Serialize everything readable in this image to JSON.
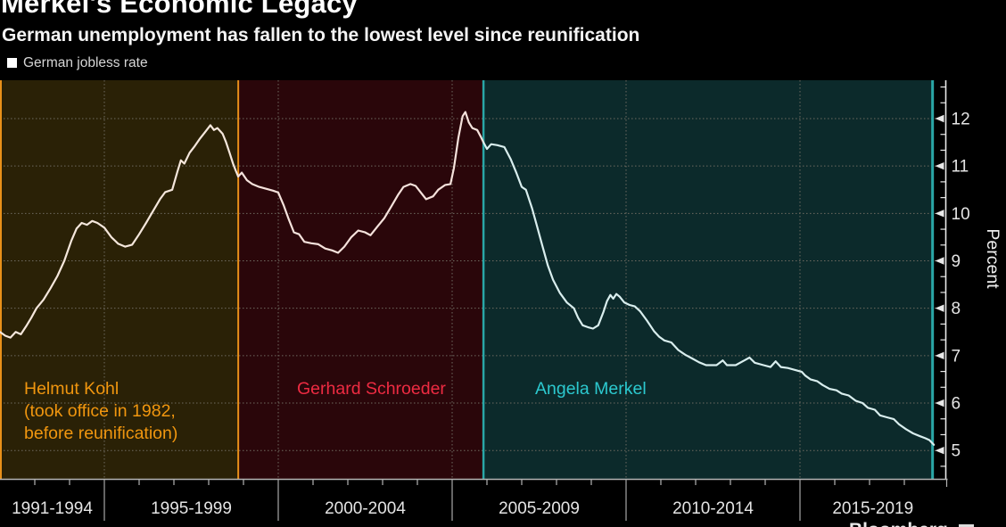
{
  "title": "Merkel's Economic Legacy",
  "subtitle": "German unemployment has fallen to the lowest level since reunification",
  "legend": {
    "label": "German jobless rate",
    "marker_color": "#ffffff"
  },
  "source": "Bloomberg",
  "colors": {
    "background": "#000000",
    "grid": "#6e6a60",
    "axis": "#e8e8e8",
    "bottom_axis": "#b4b4b4",
    "tick_label": "#e4e4e4",
    "separator": "#a8a8a8"
  },
  "chart_data": {
    "type": "line",
    "title": "Merkel's Economic Legacy",
    "subtitle": "German unemployment has fallen to the lowest level since reunification",
    "ylabel": "Percent",
    "yticks": [
      5,
      6,
      7,
      8,
      9,
      10,
      11,
      12
    ],
    "ylim": [
      4.4,
      12.8
    ],
    "grid": true,
    "legend_position": "top-left",
    "x_axis_labels": [
      "1991-1994",
      "1995-1999",
      "2000-2004",
      "2005-2009",
      "2010-2014",
      "2015-2019"
    ],
    "x_separator_years": [
      1995,
      2000,
      2005,
      2010,
      2015
    ],
    "x_start_year": 1992,
    "x_end_year": 2018.85,
    "regions": [
      {
        "label": "Helmut Kohl",
        "note_line1": "(took office in 1982,",
        "note_line2": "before reunification)",
        "start": 1992,
        "end": 1998.85,
        "fill": "#2a2106",
        "border_color": "#e8901a",
        "label_color": "#f0960f",
        "line_color": "#f5e7dc"
      },
      {
        "label": "Gerhard Schroeder",
        "note_line1": "",
        "note_line2": "",
        "start": 1998.85,
        "end": 2005.9,
        "fill": "#2a060a",
        "border_color": "",
        "label_color": "#ee2b42",
        "line_color": "#f5e2dc"
      },
      {
        "label": "Angela Merkel",
        "note_line1": "",
        "note_line2": "",
        "start": 2005.9,
        "end": 2018.85,
        "fill": "#0c2a2b",
        "border_color": "#2aa6a6",
        "label_color": "#2cc9cf",
        "line_color": "#d9eeee"
      }
    ],
    "series": [
      {
        "name": "German jobless rate",
        "points": [
          [
            1992.0,
            7.5
          ],
          [
            1992.15,
            7.42
          ],
          [
            1992.3,
            7.38
          ],
          [
            1992.45,
            7.5
          ],
          [
            1992.6,
            7.45
          ],
          [
            1992.75,
            7.62
          ],
          [
            1992.9,
            7.8
          ],
          [
            1993.05,
            8.0
          ],
          [
            1993.25,
            8.18
          ],
          [
            1993.45,
            8.42
          ],
          [
            1993.65,
            8.68
          ],
          [
            1993.85,
            9.0
          ],
          [
            1994.05,
            9.42
          ],
          [
            1994.2,
            9.68
          ],
          [
            1994.35,
            9.8
          ],
          [
            1994.5,
            9.76
          ],
          [
            1994.65,
            9.84
          ],
          [
            1994.8,
            9.8
          ],
          [
            1995.0,
            9.7
          ],
          [
            1995.2,
            9.5
          ],
          [
            1995.4,
            9.36
          ],
          [
            1995.6,
            9.3
          ],
          [
            1995.8,
            9.34
          ],
          [
            1996.0,
            9.56
          ],
          [
            1996.2,
            9.8
          ],
          [
            1996.4,
            10.05
          ],
          [
            1996.6,
            10.3
          ],
          [
            1996.75,
            10.45
          ],
          [
            1996.95,
            10.5
          ],
          [
            1997.1,
            10.88
          ],
          [
            1997.2,
            11.12
          ],
          [
            1997.3,
            11.05
          ],
          [
            1997.45,
            11.28
          ],
          [
            1997.6,
            11.42
          ],
          [
            1997.75,
            11.58
          ],
          [
            1997.9,
            11.72
          ],
          [
            1998.05,
            11.86
          ],
          [
            1998.15,
            11.76
          ],
          [
            1998.25,
            11.8
          ],
          [
            1998.4,
            11.68
          ],
          [
            1998.5,
            11.5
          ],
          [
            1998.6,
            11.28
          ],
          [
            1998.7,
            11.05
          ],
          [
            1998.78,
            10.9
          ],
          [
            1998.85,
            10.78
          ],
          [
            1998.95,
            10.86
          ],
          [
            1999.1,
            10.7
          ],
          [
            1999.25,
            10.62
          ],
          [
            1999.45,
            10.56
          ],
          [
            1999.65,
            10.52
          ],
          [
            1999.85,
            10.48
          ],
          [
            2000.0,
            10.44
          ],
          [
            2000.15,
            10.18
          ],
          [
            2000.3,
            9.88
          ],
          [
            2000.45,
            9.6
          ],
          [
            2000.6,
            9.56
          ],
          [
            2000.75,
            9.4
          ],
          [
            2000.95,
            9.37
          ],
          [
            2001.15,
            9.35
          ],
          [
            2001.35,
            9.26
          ],
          [
            2001.55,
            9.22
          ],
          [
            2001.72,
            9.17
          ],
          [
            2001.9,
            9.3
          ],
          [
            2002.1,
            9.5
          ],
          [
            2002.3,
            9.64
          ],
          [
            2002.5,
            9.6
          ],
          [
            2002.65,
            9.54
          ],
          [
            2002.85,
            9.72
          ],
          [
            2003.05,
            9.9
          ],
          [
            2003.25,
            10.15
          ],
          [
            2003.45,
            10.4
          ],
          [
            2003.6,
            10.56
          ],
          [
            2003.8,
            10.62
          ],
          [
            2003.95,
            10.58
          ],
          [
            2004.1,
            10.44
          ],
          [
            2004.25,
            10.3
          ],
          [
            2004.45,
            10.36
          ],
          [
            2004.6,
            10.5
          ],
          [
            2004.8,
            10.6
          ],
          [
            2004.95,
            10.62
          ],
          [
            2005.05,
            10.95
          ],
          [
            2005.18,
            11.6
          ],
          [
            2005.3,
            12.05
          ],
          [
            2005.38,
            12.14
          ],
          [
            2005.48,
            11.92
          ],
          [
            2005.58,
            11.8
          ],
          [
            2005.72,
            11.76
          ],
          [
            2005.82,
            11.62
          ],
          [
            2005.9,
            11.5
          ],
          [
            2006.0,
            11.36
          ],
          [
            2006.12,
            11.46
          ],
          [
            2006.3,
            11.44
          ],
          [
            2006.5,
            11.4
          ],
          [
            2006.68,
            11.15
          ],
          [
            2006.85,
            10.85
          ],
          [
            2007.0,
            10.56
          ],
          [
            2007.12,
            10.5
          ],
          [
            2007.3,
            10.1
          ],
          [
            2007.45,
            9.7
          ],
          [
            2007.6,
            9.3
          ],
          [
            2007.75,
            8.9
          ],
          [
            2007.9,
            8.6
          ],
          [
            2008.1,
            8.32
          ],
          [
            2008.3,
            8.12
          ],
          [
            2008.5,
            8.0
          ],
          [
            2008.62,
            7.8
          ],
          [
            2008.75,
            7.64
          ],
          [
            2008.9,
            7.6
          ],
          [
            2009.05,
            7.57
          ],
          [
            2009.2,
            7.64
          ],
          [
            2009.35,
            7.92
          ],
          [
            2009.45,
            8.15
          ],
          [
            2009.55,
            8.28
          ],
          [
            2009.63,
            8.2
          ],
          [
            2009.72,
            8.3
          ],
          [
            2009.82,
            8.24
          ],
          [
            2009.95,
            8.12
          ],
          [
            2010.1,
            8.07
          ],
          [
            2010.25,
            8.04
          ],
          [
            2010.4,
            7.94
          ],
          [
            2010.6,
            7.74
          ],
          [
            2010.8,
            7.52
          ],
          [
            2010.95,
            7.4
          ],
          [
            2011.1,
            7.32
          ],
          [
            2011.3,
            7.28
          ],
          [
            2011.5,
            7.12
          ],
          [
            2011.7,
            7.02
          ],
          [
            2011.9,
            6.94
          ],
          [
            2012.1,
            6.86
          ],
          [
            2012.3,
            6.8
          ],
          [
            2012.6,
            6.8
          ],
          [
            2012.78,
            6.9
          ],
          [
            2012.9,
            6.8
          ],
          [
            2013.15,
            6.8
          ],
          [
            2013.4,
            6.9
          ],
          [
            2013.55,
            6.96
          ],
          [
            2013.7,
            6.85
          ],
          [
            2013.95,
            6.8
          ],
          [
            2014.15,
            6.76
          ],
          [
            2014.3,
            6.88
          ],
          [
            2014.45,
            6.76
          ],
          [
            2014.65,
            6.74
          ],
          [
            2014.85,
            6.7
          ],
          [
            2015.05,
            6.66
          ],
          [
            2015.15,
            6.58
          ],
          [
            2015.3,
            6.5
          ],
          [
            2015.5,
            6.46
          ],
          [
            2015.65,
            6.38
          ],
          [
            2015.85,
            6.3
          ],
          [
            2016.05,
            6.27
          ],
          [
            2016.2,
            6.2
          ],
          [
            2016.4,
            6.16
          ],
          [
            2016.6,
            6.05
          ],
          [
            2016.8,
            6.0
          ],
          [
            2016.95,
            5.9
          ],
          [
            2017.15,
            5.86
          ],
          [
            2017.3,
            5.74
          ],
          [
            2017.5,
            5.7
          ],
          [
            2017.7,
            5.66
          ],
          [
            2017.85,
            5.55
          ],
          [
            2018.05,
            5.45
          ],
          [
            2018.25,
            5.36
          ],
          [
            2018.45,
            5.3
          ],
          [
            2018.6,
            5.26
          ],
          [
            2018.72,
            5.22
          ],
          [
            2018.85,
            5.12
          ]
        ]
      }
    ]
  }
}
